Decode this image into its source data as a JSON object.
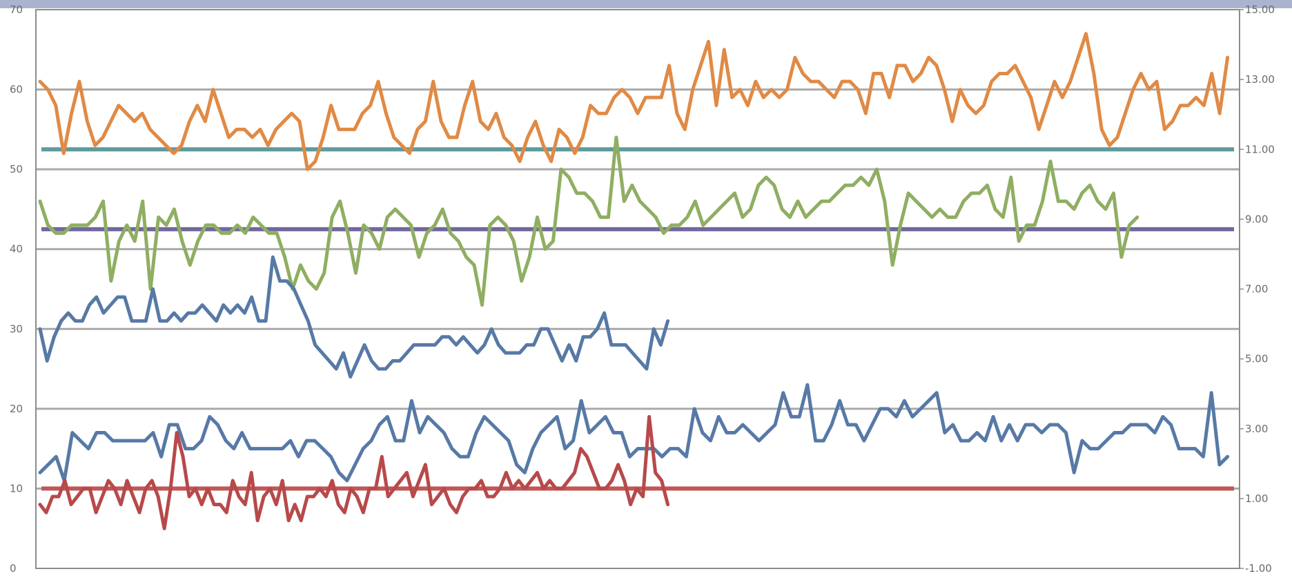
{
  "chart_data": {
    "type": "line",
    "title": "",
    "xlabel": "",
    "ylabel": "",
    "grid": true,
    "legend": "none",
    "y_left": {
      "min": 0,
      "max": 70,
      "ticks": [
        "0",
        "10",
        "20",
        "30",
        "40",
        "50",
        "60",
        "70"
      ]
    },
    "y_right": {
      "min": -1,
      "max": 15,
      "ticks": [
        "-1.00",
        "1.00",
        "3.00",
        "5.00",
        "7.00",
        "9.00",
        "11.00",
        "13.00",
        "15.00"
      ]
    },
    "series": [
      {
        "color": "#e08a45",
        "axis": "left",
        "x_end": 0.99,
        "values": [
          61,
          60,
          58,
          52,
          57,
          61,
          56,
          53,
          54,
          56,
          58,
          57,
          56,
          57,
          55,
          54,
          53,
          52,
          53,
          56,
          58,
          56,
          60,
          57,
          54,
          55,
          55,
          54,
          55,
          53,
          55,
          56,
          57,
          56,
          50,
          51,
          54,
          58,
          55,
          55,
          55,
          57,
          58,
          61,
          57,
          54,
          53,
          52,
          55,
          56,
          61,
          56,
          54,
          54,
          58,
          61,
          56,
          55,
          57,
          54,
          53,
          51,
          54,
          56,
          53,
          51,
          55,
          54,
          52,
          54,
          58,
          57,
          57,
          59,
          60,
          59,
          57,
          59,
          59,
          59,
          63,
          57,
          55,
          60,
          63,
          66,
          58,
          65,
          59,
          60,
          58,
          61,
          59,
          60,
          59,
          60,
          64,
          62,
          61,
          61,
          60,
          59,
          61,
          61,
          60,
          57,
          62,
          62,
          59,
          63,
          63,
          61,
          62,
          64,
          63,
          60,
          56,
          60,
          58,
          57,
          58,
          61,
          62,
          62,
          63,
          61,
          59,
          55,
          58,
          61,
          59,
          61,
          64,
          67,
          62,
          55,
          53,
          54,
          57,
          60,
          62,
          60,
          61,
          55,
          56,
          58,
          58,
          59,
          58,
          62,
          57,
          64
        ]
      },
      {
        "color": "#8fae62",
        "axis": "left",
        "x_end": 0.915,
        "values": [
          46,
          43,
          42,
          42,
          43,
          43,
          43,
          44,
          46,
          36,
          41,
          43,
          41,
          46,
          35,
          44,
          43,
          45,
          41,
          38,
          41,
          43,
          43,
          42,
          42,
          43,
          42,
          44,
          43,
          42,
          42,
          39,
          35,
          38,
          36,
          35,
          37,
          44,
          46,
          42,
          37,
          43,
          42,
          40,
          44,
          45,
          44,
          43,
          39,
          42,
          43,
          45,
          42,
          41,
          39,
          38,
          33,
          43,
          44,
          43,
          41,
          36,
          39,
          44,
          40,
          41,
          50,
          49,
          47,
          47,
          46,
          44,
          44,
          54,
          46,
          48,
          46,
          45,
          44,
          42,
          43,
          43,
          44,
          46,
          43,
          44,
          45,
          46,
          47,
          44,
          45,
          48,
          49,
          48,
          45,
          44,
          46,
          44,
          45,
          46,
          46,
          47,
          48,
          48,
          49,
          48,
          50,
          46,
          38,
          43,
          47,
          46,
          45,
          44,
          45,
          44,
          44,
          46,
          47,
          47,
          48,
          45,
          44,
          49,
          41,
          43,
          43,
          46,
          51,
          46,
          46,
          45,
          47,
          48,
          46,
          45,
          47,
          39,
          43,
          44
        ]
      },
      {
        "color": "#5779a6",
        "axis": "left",
        "x_end": 0.525,
        "values": [
          30,
          26,
          29,
          31,
          32,
          31,
          31,
          33,
          34,
          32,
          33,
          34,
          34,
          31,
          31,
          31,
          35,
          31,
          31,
          32,
          31,
          32,
          32,
          33,
          32,
          31,
          33,
          32,
          33,
          32,
          34,
          31,
          31,
          39,
          36,
          36,
          35,
          33,
          31,
          28,
          27,
          26,
          25,
          27,
          24,
          26,
          28,
          26,
          25,
          25,
          26,
          26,
          27,
          28,
          28,
          28,
          28,
          29,
          29,
          28,
          29,
          28,
          27,
          28,
          30,
          28,
          27,
          27,
          27,
          28,
          28,
          30,
          30,
          28,
          26,
          28,
          26,
          29,
          29,
          30,
          32,
          28,
          28,
          28,
          27,
          26,
          25,
          30,
          28,
          31
        ]
      },
      {
        "color": "#5779a6",
        "axis": "left",
        "x_end": 0.99,
        "values": [
          12,
          13,
          14,
          11,
          17,
          16,
          15,
          17,
          17,
          16,
          16,
          16,
          16,
          16,
          17,
          14,
          18,
          18,
          15,
          15,
          16,
          19,
          18,
          16,
          15,
          17,
          15,
          15,
          15,
          15,
          15,
          16,
          14,
          16,
          16,
          15,
          14,
          12,
          11,
          13,
          15,
          16,
          18,
          19,
          16,
          16,
          21,
          17,
          19,
          18,
          17,
          15,
          14,
          14,
          17,
          19,
          18,
          17,
          16,
          13,
          12,
          15,
          17,
          18,
          19,
          15,
          16,
          21,
          17,
          18,
          19,
          17,
          17,
          14,
          15,
          15,
          15,
          14,
          15,
          15,
          14,
          20,
          17,
          16,
          19,
          17,
          17,
          18,
          17,
          16,
          17,
          18,
          22,
          19,
          19,
          23,
          16,
          16,
          18,
          21,
          18,
          18,
          16,
          18,
          20,
          20,
          19,
          21,
          19,
          20,
          21,
          22,
          17,
          18,
          16,
          16,
          17,
          16,
          19,
          16,
          18,
          16,
          18,
          18,
          17,
          18,
          18,
          17,
          12,
          16,
          15,
          15,
          16,
          17,
          17,
          18,
          18,
          18,
          17,
          19,
          18,
          15,
          15,
          15,
          14,
          22,
          13,
          14
        ]
      },
      {
        "color": "#b7494a",
        "axis": "left",
        "x_end": 0.525,
        "values": [
          8,
          7,
          9,
          9,
          11,
          8,
          9,
          10,
          10,
          7,
          9,
          11,
          10,
          8,
          11,
          9,
          7,
          10,
          11,
          9,
          5,
          10,
          17,
          14,
          9,
          10,
          8,
          10,
          8,
          8,
          7,
          11,
          9,
          8,
          12,
          6,
          9,
          10,
          8,
          11,
          6,
          8,
          6,
          9,
          9,
          10,
          9,
          11,
          8,
          7,
          10,
          9,
          7,
          10,
          10,
          14,
          9,
          10,
          11,
          12,
          9,
          11,
          13,
          8,
          9,
          10,
          8,
          7,
          9,
          10,
          10,
          11,
          9,
          9,
          10,
          12,
          10,
          11,
          10,
          11,
          12,
          10,
          11,
          10,
          10,
          11,
          12,
          15,
          14,
          12,
          10,
          10,
          11,
          13,
          11,
          8,
          10,
          9,
          19,
          12,
          11,
          8
        ]
      }
    ],
    "reference_lines": [
      {
        "value": 52.5,
        "axis": "left",
        "color": "#5e9a9e"
      },
      {
        "value": 42.5,
        "axis": "left",
        "color": "#72689f"
      },
      {
        "value": 10,
        "axis": "left",
        "color": "#c05656"
      }
    ]
  }
}
